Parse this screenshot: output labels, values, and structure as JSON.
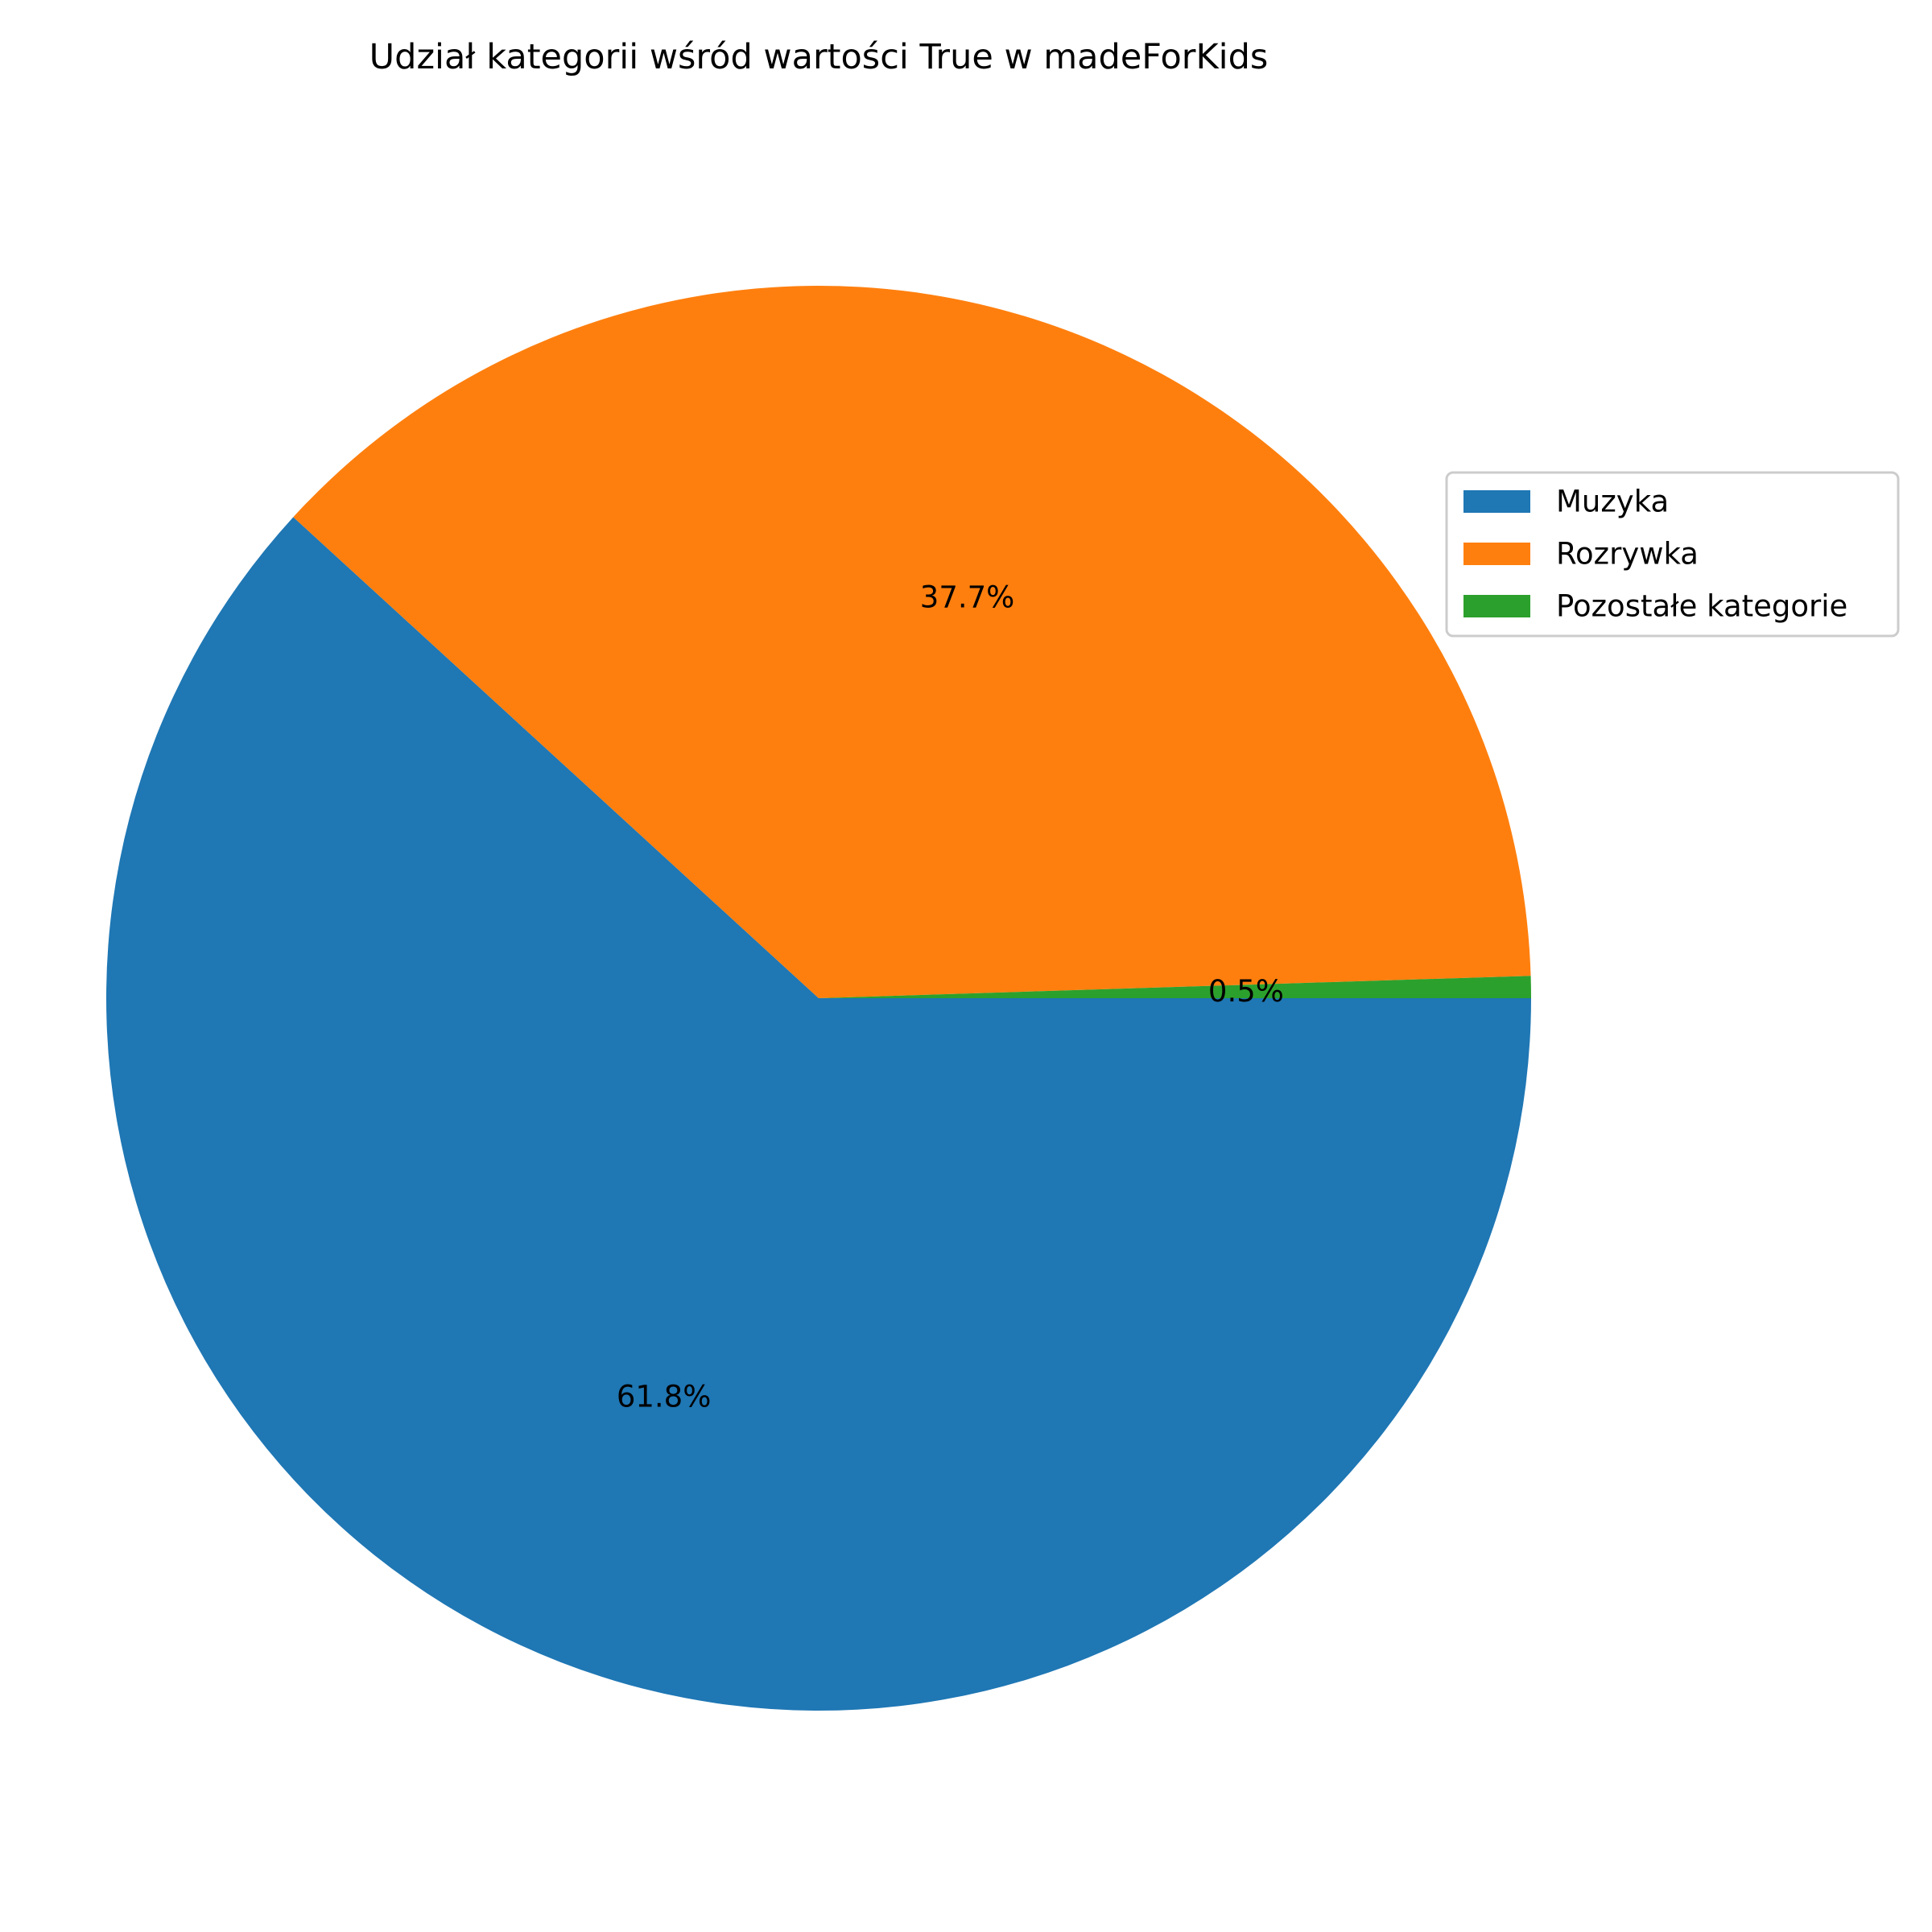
{
  "chart_data": {
    "type": "pie",
    "title": "Udział kategorii wśród wartości True w madeForKids",
    "start_angle_deg": 0,
    "direction": "clockwise",
    "legend_position": "right",
    "slices": [
      {
        "label": "Muzyka",
        "value": 61.8,
        "pct_label": "61.8%",
        "color": "#1f77b4"
      },
      {
        "label": "Rozrywka",
        "value": 37.7,
        "pct_label": "37.7%",
        "color": "#ff7f0e"
      },
      {
        "label": "Pozostałe kategorie",
        "value": 0.5,
        "pct_label": "0.5%",
        "color": "#2ca02c"
      }
    ]
  }
}
